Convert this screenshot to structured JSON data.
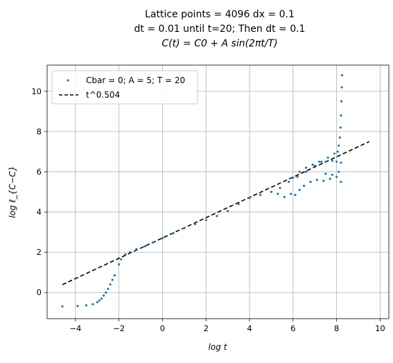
{
  "chart_data": {
    "type": "scatter",
    "title_lines": [
      "Lattice points = 4096 dx = 0.1",
      "dt = 0.01 until t=20; Then dt = 0.1",
      "C(t) = C0 + A sin(2πt/T)"
    ],
    "xlabel": "log t",
    "ylabel": "log ℓ_{C−C}",
    "xlim": [
      -5.3,
      10.4
    ],
    "ylim": [
      -1.3,
      11.3
    ],
    "xticks": [
      -4,
      -2,
      0,
      2,
      4,
      6,
      8,
      10
    ],
    "yticks": [
      0,
      2,
      4,
      6,
      8,
      10
    ],
    "grid": true,
    "legend_position": "top-left",
    "colors": {
      "scatter": "#1f77b4",
      "fit": "#000000"
    },
    "series": [
      {
        "name": "Cbar = 0; A = 5; T = 20",
        "type": "scatter",
        "points": [
          [
            -4.6,
            -0.69
          ],
          [
            -3.9,
            -0.67
          ],
          [
            -3.5,
            -0.64
          ],
          [
            -3.2,
            -0.58
          ],
          [
            -3.0,
            -0.48
          ],
          [
            -2.9,
            -0.4
          ],
          [
            -2.8,
            -0.3
          ],
          [
            -2.7,
            -0.15
          ],
          [
            -2.6,
            0.0
          ],
          [
            -2.5,
            0.18
          ],
          [
            -2.4,
            0.4
          ],
          [
            -2.3,
            0.63
          ],
          [
            -2.2,
            0.85
          ],
          [
            -2.0,
            1.4
          ],
          [
            -1.9,
            1.65
          ],
          [
            -1.7,
            1.9
          ],
          [
            -1.5,
            2.0
          ],
          [
            -1.2,
            2.15
          ],
          [
            -0.8,
            2.3
          ],
          [
            -0.4,
            2.5
          ],
          [
            0.0,
            2.7
          ],
          [
            0.5,
            2.95
          ],
          [
            1.0,
            3.2
          ],
          [
            1.5,
            3.4
          ],
          [
            2.0,
            3.6
          ],
          [
            2.5,
            3.8
          ],
          [
            3.0,
            4.05
          ],
          [
            3.5,
            4.4
          ],
          [
            4.0,
            4.7
          ],
          [
            4.5,
            4.85
          ],
          [
            5.0,
            5.0
          ],
          [
            5.4,
            5.2
          ],
          [
            5.8,
            5.5
          ],
          [
            6.2,
            5.75
          ],
          [
            6.6,
            6.0
          ],
          [
            7.0,
            6.3
          ],
          [
            7.3,
            6.5
          ],
          [
            7.6,
            6.7
          ],
          [
            7.9,
            6.9
          ],
          [
            8.05,
            7.0
          ],
          [
            8.1,
            7.3
          ],
          [
            8.15,
            7.7
          ],
          [
            8.18,
            8.2
          ],
          [
            8.2,
            8.8
          ],
          [
            8.22,
            9.5
          ],
          [
            8.24,
            10.2
          ],
          [
            8.25,
            10.8
          ],
          [
            6.0,
            5.7
          ],
          [
            6.3,
            6.0
          ],
          [
            6.6,
            6.2
          ],
          [
            6.9,
            6.35
          ],
          [
            7.2,
            6.5
          ],
          [
            7.5,
            6.5
          ],
          [
            7.8,
            6.55
          ],
          [
            8.0,
            6.5
          ],
          [
            8.2,
            6.45
          ],
          [
            5.3,
            4.9
          ],
          [
            5.6,
            4.75
          ],
          [
            5.9,
            4.9
          ],
          [
            6.1,
            4.85
          ],
          [
            6.3,
            5.1
          ],
          [
            6.5,
            5.3
          ],
          [
            6.8,
            5.5
          ],
          [
            7.1,
            5.6
          ],
          [
            7.4,
            5.55
          ],
          [
            7.7,
            5.65
          ],
          [
            8.0,
            5.75
          ],
          [
            8.2,
            5.5
          ],
          [
            7.5,
            5.9
          ],
          [
            7.8,
            5.85
          ],
          [
            8.1,
            6.0
          ]
        ]
      },
      {
        "name": "t^0.504",
        "type": "line",
        "style": "dashed",
        "x": [
          -4.6,
          9.5
        ],
        "y": [
          0.39,
          7.5
        ]
      }
    ]
  }
}
